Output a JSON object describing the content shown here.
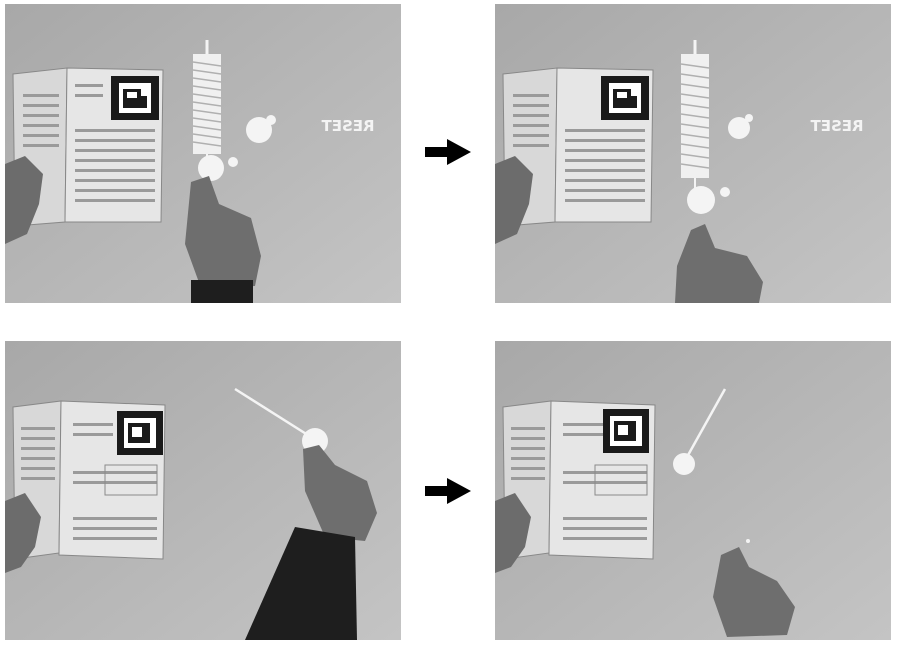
{
  "figure": {
    "panels": [
      {
        "row": "top",
        "col": "left",
        "scene": "spring",
        "projected_label": "RESET"
      },
      {
        "row": "top",
        "col": "right",
        "scene": "spring",
        "projected_label": "RESET"
      },
      {
        "row": "bottom",
        "col": "left",
        "scene": "pendulum"
      },
      {
        "row": "bottom",
        "col": "right",
        "scene": "pendulum"
      }
    ],
    "arrows": [
      "arrow-right-icon",
      "arrow-right-icon"
    ],
    "colors": {
      "table": "#b9b9b9",
      "projection": "#f4f4f4",
      "arrow": "#000000"
    }
  }
}
